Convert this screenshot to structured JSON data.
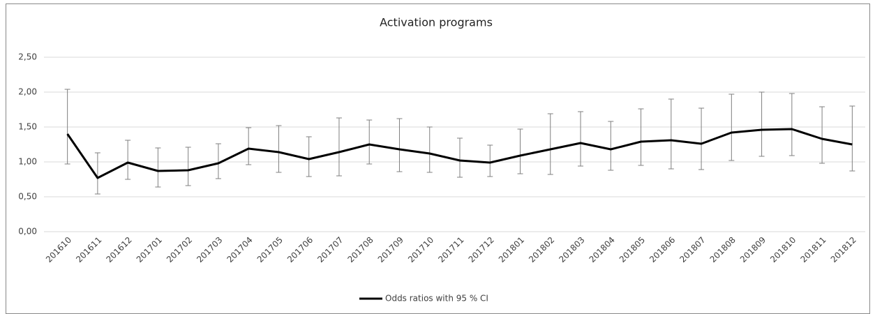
{
  "chart_data": {
    "type": "line",
    "title": "Activation programs",
    "categories": [
      "201610",
      "201611",
      "201612",
      "201701",
      "201702",
      "201703",
      "201704",
      "201705",
      "201706",
      "201707",
      "201708",
      "201709",
      "201710",
      "201711",
      "201712",
      "201801",
      "201802",
      "201803",
      "201804",
      "201805",
      "201806",
      "201807",
      "201808",
      "201809",
      "201810",
      "201811",
      "201812"
    ],
    "series": [
      {
        "name": "Odds ratios with 95 % CI",
        "color": "#000000",
        "values": [
          1.4,
          0.77,
          0.99,
          0.87,
          0.88,
          0.98,
          1.19,
          1.14,
          1.04,
          1.14,
          1.25,
          1.18,
          1.12,
          1.02,
          0.99,
          1.09,
          1.18,
          1.27,
          1.18,
          1.29,
          1.31,
          1.26,
          1.42,
          1.46,
          1.47,
          1.33,
          1.25
        ],
        "lower": [
          0.97,
          0.54,
          0.75,
          0.64,
          0.66,
          0.76,
          0.96,
          0.85,
          0.79,
          0.8,
          0.97,
          0.86,
          0.85,
          0.78,
          0.79,
          0.83,
          0.82,
          0.94,
          0.88,
          0.95,
          0.9,
          0.89,
          1.02,
          1.08,
          1.09,
          0.98,
          0.87
        ],
        "upper": [
          2.04,
          1.13,
          1.31,
          1.2,
          1.21,
          1.26,
          1.49,
          1.52,
          1.36,
          1.63,
          1.6,
          1.62,
          1.5,
          1.34,
          1.24,
          1.47,
          1.69,
          1.72,
          1.58,
          1.76,
          1.9,
          1.77,
          1.97,
          2.0,
          1.98,
          1.79,
          1.8
        ],
        "error_color": "#7f7f7f"
      }
    ],
    "ylim": [
      0,
      2.5
    ],
    "yticks": [
      {
        "value": 0,
        "label": "0,00"
      },
      {
        "value": 0.5,
        "label": "0,50"
      },
      {
        "value": 1,
        "label": "1,00"
      },
      {
        "value": 1.5,
        "label": "1,50"
      },
      {
        "value": 2,
        "label": "2,00"
      },
      {
        "value": 2.5,
        "label": "2,50"
      }
    ],
    "grid": true,
    "legend": "bottom"
  }
}
